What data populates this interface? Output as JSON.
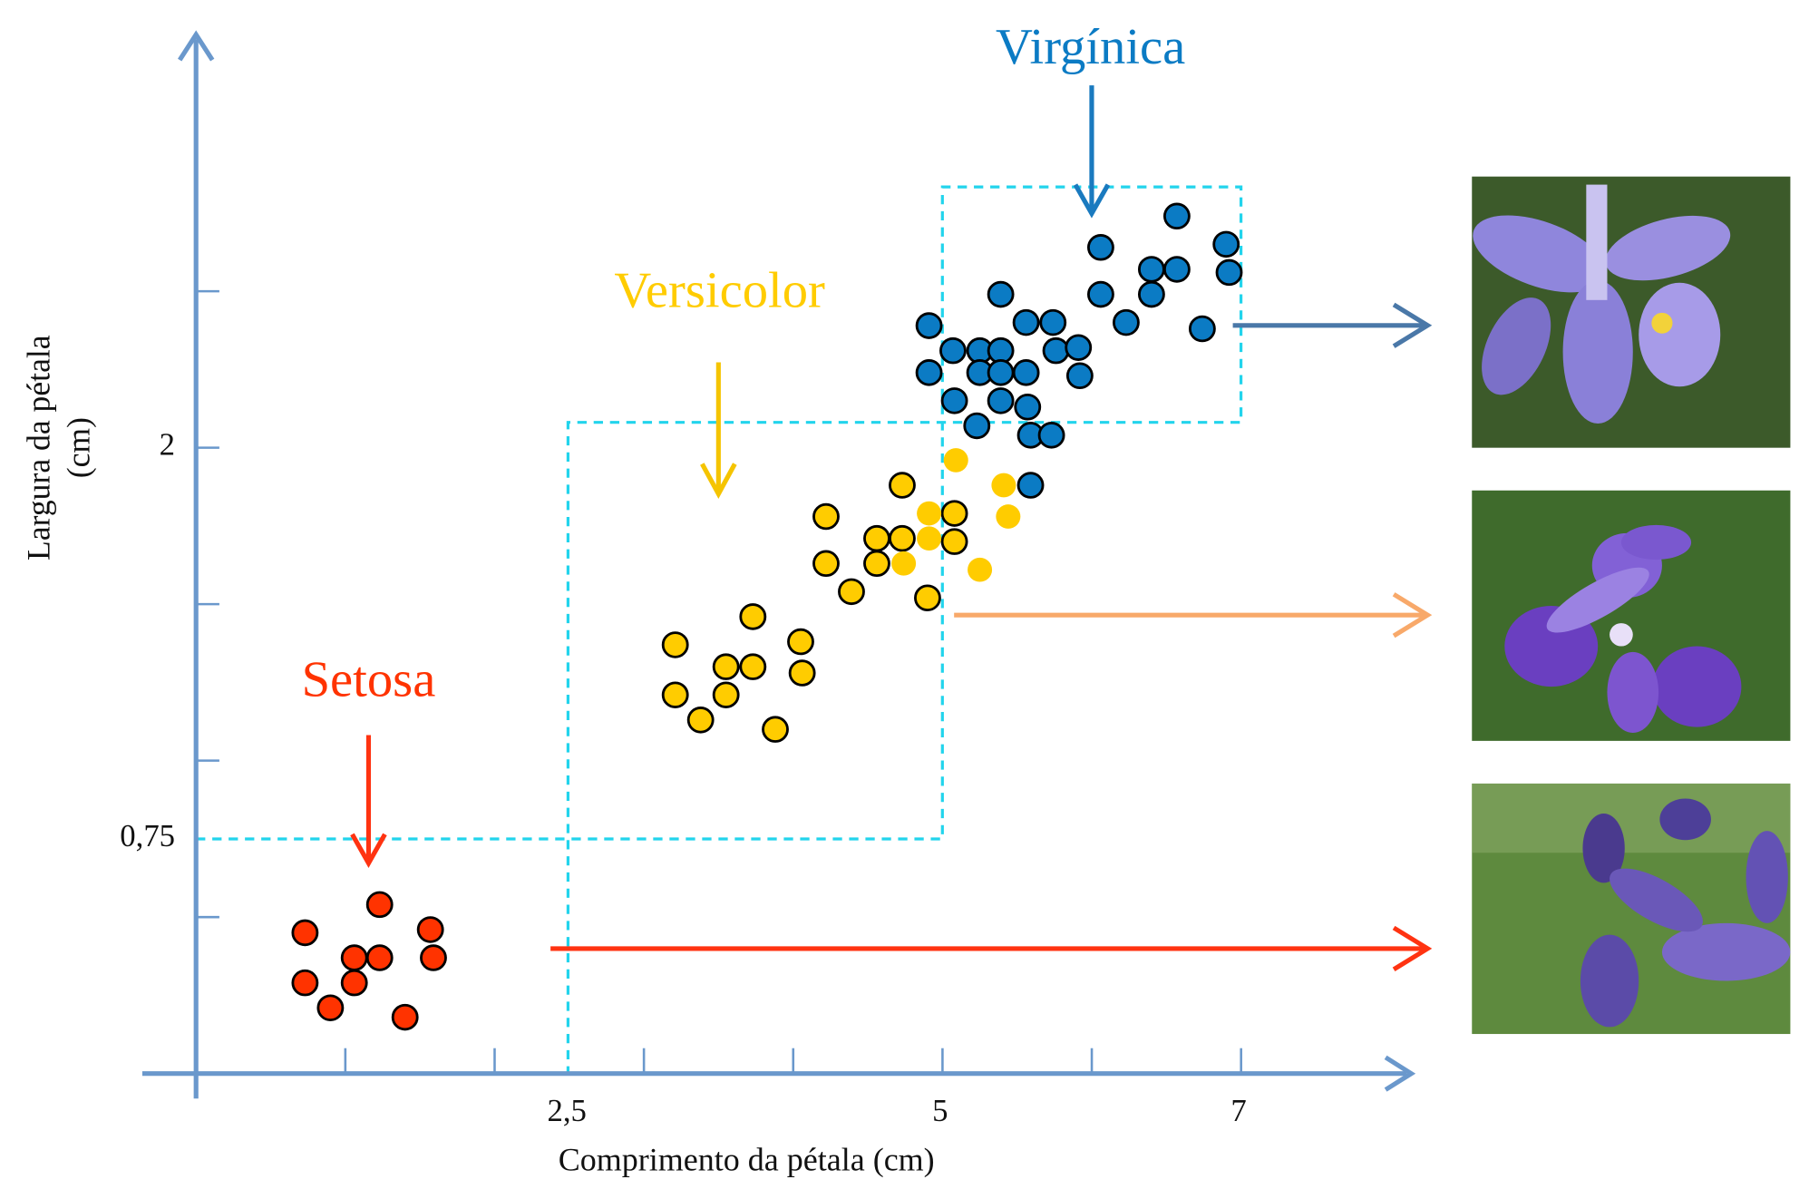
{
  "chart_data": {
    "type": "scatter",
    "xlabel": "Comprimento da pétala (cm)",
    "ylabel": [
      "Largura da pétala",
      "(cm)"
    ],
    "xlim": [
      -0.36,
      8.14
    ],
    "ylim": [
      -0.08,
      3.32
    ],
    "xticks": [
      {
        "value": 2.5,
        "label": "2,5"
      },
      5,
      7
    ],
    "yticks": [
      {
        "value": 0.75,
        "label": "0,75"
      },
      2
    ],
    "xminorticks": [
      1,
      2,
      3,
      4,
      5,
      6,
      7
    ],
    "yminorticks": [
      0.5,
      1,
      1.5,
      2,
      2.5
    ],
    "axis_color": "#6a98cc",
    "series": [
      {
        "name": "Setosa",
        "color": "#ff3300",
        "outline": true,
        "x": [
          0.73,
          0.73,
          0.9,
          1.06,
          1.06,
          1.23,
          1.23,
          1.4,
          1.57,
          1.59
        ],
        "values": [
          0.45,
          0.29,
          0.21,
          0.37,
          0.29,
          0.54,
          0.37,
          0.18,
          0.46,
          0.37
        ]
      },
      {
        "name": "Versicolor",
        "color": "#ffcc00",
        "outline": true,
        "x": [
          3.21,
          3.21,
          3.38,
          3.55,
          3.55,
          3.73,
          3.73,
          3.88,
          4.05,
          4.06,
          4.22,
          4.22,
          4.39,
          4.56,
          4.56,
          4.73,
          4.73,
          4.9,
          5.08,
          5.08
        ],
        "values": [
          1.37,
          1.21,
          1.13,
          1.3,
          1.21,
          1.46,
          1.3,
          1.1,
          1.38,
          1.28,
          1.78,
          1.63,
          1.54,
          1.71,
          1.63,
          1.88,
          1.71,
          1.52,
          1.79,
          1.7
        ]
      },
      {
        "name": "Virgínica",
        "color": "#0b7bc4",
        "outline": true,
        "x": [
          4.91,
          4.91,
          5.07,
          5.08,
          5.23,
          5.25,
          5.25,
          5.39,
          5.39,
          5.39,
          5.39,
          5.56,
          5.56,
          5.57,
          5.59,
          5.59,
          5.74,
          5.76,
          5.73,
          5.91,
          5.92,
          6.06,
          6.06,
          6.23,
          6.4,
          6.4,
          6.57,
          6.57,
          6.74,
          6.9,
          6.92
        ],
        "values": [
          2.39,
          2.24,
          2.31,
          2.15,
          2.07,
          2.31,
          2.24,
          2.49,
          2.31,
          2.24,
          2.15,
          2.4,
          2.24,
          2.13,
          2.04,
          1.88,
          2.4,
          2.31,
          2.04,
          2.32,
          2.23,
          2.64,
          2.49,
          2.4,
          2.57,
          2.49,
          2.74,
          2.57,
          2.38,
          2.65,
          2.56
        ]
      },
      {
        "color": "#ffcc00",
        "outline": false,
        "x": [
          4.74,
          4.91,
          4.91,
          5.09,
          5.25,
          5.41,
          5.44
        ],
        "values": [
          1.63,
          1.79,
          1.71,
          1.96,
          1.61,
          1.88,
          1.78
        ]
      }
    ]
  }
}
